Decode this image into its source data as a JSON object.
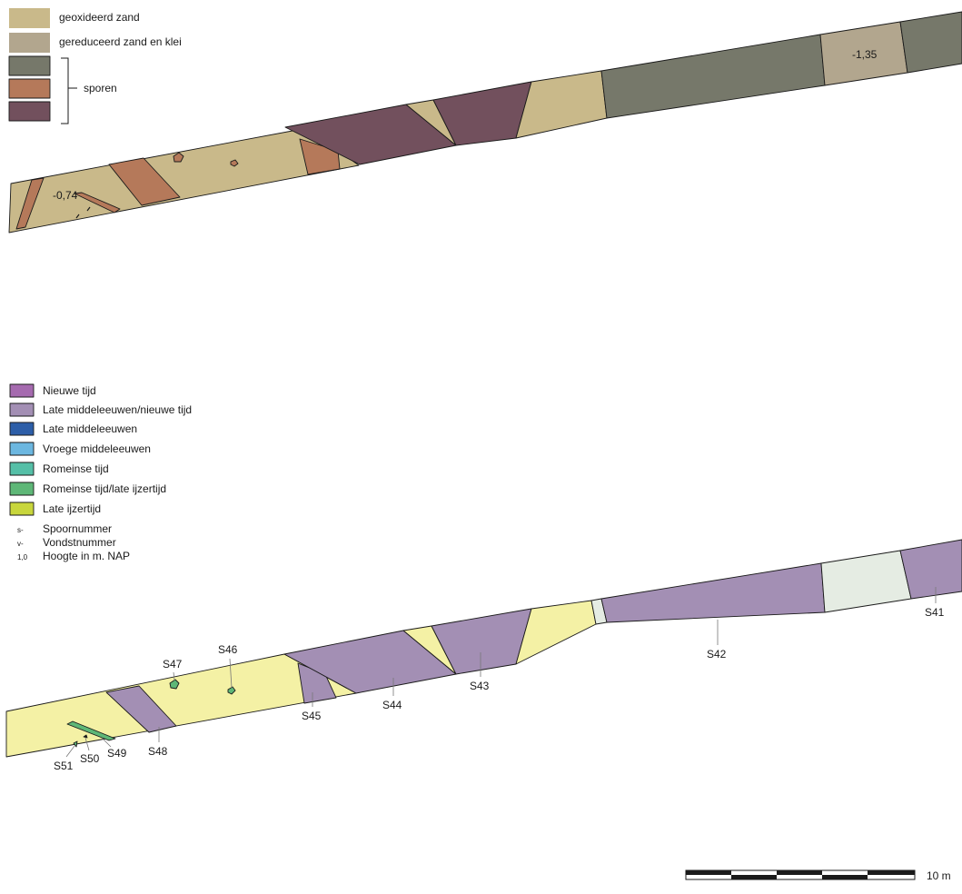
{
  "colors": {
    "geoxidized_sand": "#c9b98a",
    "reduced_sand_clay": "#b2a68e",
    "trace_olive": "#76786a",
    "trace_brown": "#b5795a",
    "trace_plum": "#72505d",
    "nieuwe_tijd": "#a56aaf",
    "late_me_nieuwe_tijd": "#a38fb4",
    "late_me": "#2d5ea8",
    "vroege_me": "#6cb7e0",
    "romeinse_tijd": "#55bfa7",
    "romeinse_late_ijzertijd": "#5eb777",
    "late_ijzertijd": "#c8d63c",
    "pale_yellow": "#f4f1a5",
    "pale_grey": "#e5ece3"
  },
  "top_legend": {
    "geoxidized_sand": "geoxideerd zand",
    "reduced_sand_clay": "gereduceerd zand en klei",
    "traces": "sporen"
  },
  "top_profile": {
    "heights": [
      "-0,74",
      "-1,35"
    ]
  },
  "bottom_legend": {
    "periods": [
      "Nieuwe  tijd",
      "Late middeleeuwen/nieuwe tijd",
      "Late middeleeuwen",
      "Vroege middeleeuwen",
      "Romeinse tijd",
      "Romeinse tijd/late ijzertijd",
      "Late ijzertijd"
    ],
    "key": [
      {
        "prefix": "s-",
        "text": "Spoornummer"
      },
      {
        "prefix": "v-",
        "text": "Vondstnummer"
      },
      {
        "prefix": "1,0",
        "text": "Hoogte in m. NAP"
      }
    ]
  },
  "bottom_profile": {
    "trace_labels": [
      "S41",
      "S42",
      "S43",
      "S44",
      "S45",
      "S46",
      "S47",
      "S48",
      "S49",
      "S50",
      "S51"
    ]
  },
  "scale_bar": {
    "label": "10 m"
  }
}
